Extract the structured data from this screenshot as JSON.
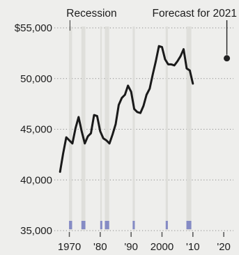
{
  "chart_data": {
    "type": "line",
    "x_ticks": [
      "1970",
      "'80",
      "'90",
      "2000",
      "'10",
      "'20"
    ],
    "y_ticks": [
      "$55,000",
      "50,000",
      "45,000",
      "40,000",
      "35,000"
    ],
    "y_tick_values": [
      55000,
      50000,
      45000,
      40000,
      35000
    ],
    "xlim": [
      1966.5,
      2022
    ],
    "ylim": [
      35000,
      55000
    ],
    "grid": "horizontal dotted",
    "annotations": [
      {
        "label": "Recession",
        "x": 1969.5,
        "y": 55000
      },
      {
        "label": "Forecast for 2021",
        "x": 2021,
        "y": 55000
      }
    ],
    "recessions": [
      [
        1969.9,
        1970.9
      ],
      [
        1973.9,
        1975.2
      ],
      [
        1980.0,
        1980.5
      ],
      [
        1981.5,
        1982.9
      ],
      [
        1990.5,
        1991.2
      ],
      [
        2001.2,
        2001.9
      ],
      [
        2007.9,
        2009.5
      ]
    ],
    "series": [
      {
        "x": [
          1967,
          1968,
          1969,
          1970,
          1971,
          1972,
          1973,
          1974,
          1975,
          1976,
          1977,
          1978,
          1979,
          1980,
          1981,
          1982,
          1983,
          1984,
          1985,
          1986,
          1987,
          1988,
          1989,
          1990,
          1991,
          1992,
          1993,
          1994,
          1995,
          1996,
          1997,
          1998,
          1999,
          2000,
          2001,
          2002,
          2003,
          2004,
          2005,
          2006,
          2007,
          2008,
          2009,
          2010
        ],
        "values": [
          40800,
          42600,
          44200,
          43900,
          43600,
          45100,
          46200,
          44800,
          43600,
          44300,
          44600,
          46400,
          46300,
          44800,
          44100,
          43900,
          43600,
          44500,
          45500,
          47400,
          48100,
          48400,
          49300,
          48700,
          47000,
          46700,
          46600,
          47300,
          48400,
          49000,
          50400,
          51700,
          53200,
          53100,
          51900,
          51400,
          51400,
          51300,
          51700,
          52200,
          52900,
          51000,
          50800,
          49500
        ]
      }
    ],
    "forecast": {
      "x": 2021,
      "value": 52000
    }
  }
}
